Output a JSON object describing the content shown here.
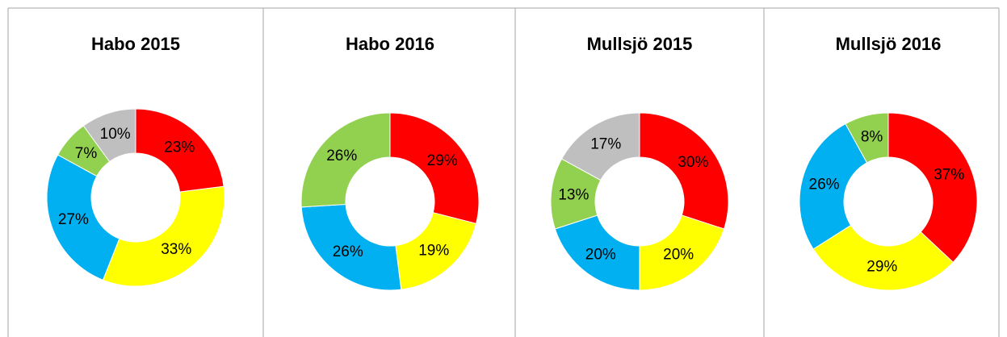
{
  "chart_data": [
    {
      "type": "pie",
      "title": "Habo 2015",
      "values": [
        23,
        33,
        27,
        7,
        10
      ],
      "value_labels": [
        "23%",
        "33%",
        "27%",
        "7%",
        "10%"
      ],
      "colors": [
        "#ff0000",
        "#ffff00",
        "#00b0f0",
        "#92d050",
        "#bfbfbf"
      ]
    },
    {
      "type": "pie",
      "title": "Habo 2016",
      "values": [
        29,
        19,
        26,
        26
      ],
      "value_labels": [
        "29%",
        "19%",
        "26%",
        "26%"
      ],
      "colors": [
        "#ff0000",
        "#ffff00",
        "#00b0f0",
        "#92d050"
      ]
    },
    {
      "type": "pie",
      "title": "Mullsjö 2015",
      "values": [
        30,
        20,
        20,
        13,
        17
      ],
      "value_labels": [
        "30%",
        "20%",
        "20%",
        "13%",
        "17%"
      ],
      "colors": [
        "#ff0000",
        "#ffff00",
        "#00b0f0",
        "#92d050",
        "#bfbfbf"
      ]
    },
    {
      "type": "pie",
      "title": "Mullsjö 2016",
      "values": [
        37,
        29,
        26,
        8
      ],
      "value_labels": [
        "37%",
        "29%",
        "26%",
        "8%"
      ],
      "colors": [
        "#ff0000",
        "#ffff00",
        "#00b0f0",
        "#92d050"
      ]
    }
  ]
}
